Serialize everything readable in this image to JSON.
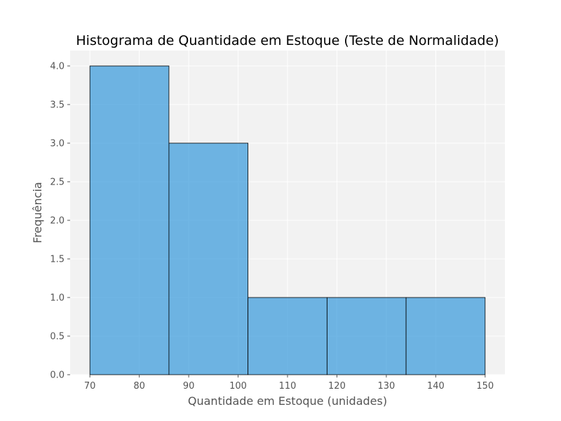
{
  "chart_data": {
    "type": "bar",
    "title": "Histograma de Quantidade em Estoque (Teste de Normalidade)",
    "xlabel": "Quantidade em Estoque (unidades)",
    "ylabel": "Frequência",
    "xlim": [
      66,
      154
    ],
    "ylim": [
      0,
      4.2
    ],
    "xticks": [
      70,
      80,
      90,
      100,
      110,
      120,
      130,
      140,
      150
    ],
    "yticks": [
      0,
      0.5,
      1.0,
      1.5,
      2.0,
      2.5,
      3.0,
      3.5,
      4.0
    ],
    "ytick_labels": [
      "0.0",
      "0.5",
      "1.0",
      "1.5",
      "2.0",
      "2.5",
      "3.0",
      "3.5",
      "4.0"
    ],
    "bins": [
      {
        "x_start": 70,
        "x_end": 86,
        "value": 4
      },
      {
        "x_start": 86,
        "x_end": 102,
        "value": 3
      },
      {
        "x_start": 102,
        "x_end": 118,
        "value": 1
      },
      {
        "x_start": 118,
        "x_end": 134,
        "value": 1
      },
      {
        "x_start": 134,
        "x_end": 150,
        "value": 1
      }
    ],
    "grid": true,
    "colors": {
      "bar": "#3498db",
      "bar_edge": "#000000",
      "plot_background": "#f2f2f2"
    }
  }
}
